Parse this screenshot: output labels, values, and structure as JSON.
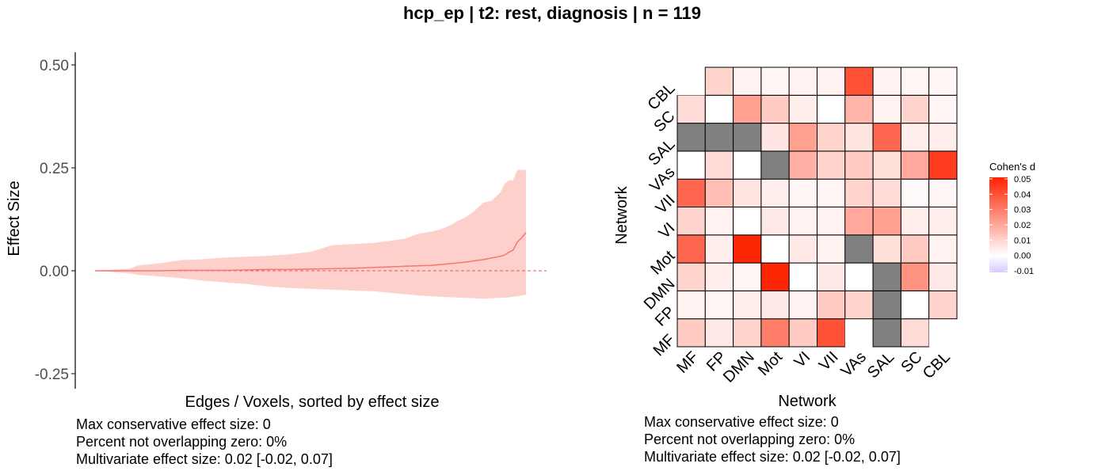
{
  "title": "hcp_ep | t2: rest, diagnosis | n = 119",
  "left_stats": [
    "Max conservative effect size: 0",
    "Percent not overlapping zero: 0%",
    "Multivariate effect size: 0.02 [-0.02, 0.07]"
  ],
  "right_stats": [
    "Max conservative effect size: 0",
    "Percent not overlapping zero: 0%",
    "Multivariate effect size: 0.02 [-0.02, 0.07]"
  ],
  "chart_data": [
    {
      "type": "area",
      "xlabel": "Edges / Voxels, sorted by effect size",
      "ylabel": "Effect Size",
      "ylim": [
        -0.28,
        0.54
      ],
      "yticks": [
        -0.25,
        0.0,
        0.25,
        0.5
      ],
      "ytick_labels": [
        "-0.25",
        "0.00",
        "0.25",
        "0.50"
      ],
      "reference_line": 0,
      "x": [
        0,
        3,
        5,
        8,
        10,
        15,
        20,
        25,
        30,
        35,
        40,
        45,
        50,
        55,
        60,
        65,
        70,
        72,
        75,
        78,
        80,
        82,
        84,
        86,
        88,
        90,
        92,
        94,
        95,
        96,
        97,
        98,
        99,
        100
      ],
      "series": [
        {
          "type": "line",
          "values": [
            0,
            0,
            0,
            0,
            0,
            0,
            0.001,
            0.001,
            0.001,
            0.002,
            0.003,
            0.003,
            0.004,
            0.005,
            0.006,
            0.008,
            0.01,
            0.011,
            0.012,
            0.013,
            0.015,
            0.017,
            0.019,
            0.021,
            0.024,
            0.027,
            0.031,
            0.035,
            0.038,
            0.045,
            0.05,
            0.07,
            0.08,
            0.093
          ],
          "color": "#f8766d"
        },
        {
          "type": "band",
          "upper": [
            0.001,
            0.002,
            0.003,
            0.005,
            0.013,
            0.018,
            0.026,
            0.028,
            0.032,
            0.034,
            0.036,
            0.04,
            0.046,
            0.062,
            0.065,
            0.068,
            0.075,
            0.078,
            0.09,
            0.095,
            0.1,
            0.108,
            0.12,
            0.13,
            0.145,
            0.165,
            0.17,
            0.19,
            0.21,
            0.22,
            0.22,
            0.245,
            0.245,
            0.245
          ],
          "lower": [
            -0.001,
            -0.002,
            -0.004,
            -0.006,
            -0.01,
            -0.014,
            -0.018,
            -0.024,
            -0.028,
            -0.032,
            -0.038,
            -0.042,
            -0.044,
            -0.046,
            -0.048,
            -0.05,
            -0.055,
            -0.057,
            -0.06,
            -0.062,
            -0.063,
            -0.064,
            -0.065,
            -0.066,
            -0.067,
            -0.068,
            -0.067,
            -0.066,
            -0.065,
            -0.065,
            -0.063,
            -0.062,
            -0.06,
            -0.058
          ],
          "color": "#fdd0cc"
        }
      ]
    },
    {
      "type": "heatmap",
      "xlabel": "Network",
      "ylabel": "Network",
      "x_categories": [
        "MF",
        "FP",
        "DMN",
        "Mot",
        "VI",
        "VII",
        "VAs",
        "SAL",
        "SC",
        "CBL"
      ],
      "y_categories": [
        "MF",
        "FP",
        "DMN",
        "Mot",
        "VI",
        "VII",
        "VAs",
        "SAL",
        "SC",
        "CBL"
      ],
      "values": [
        [
          0.012,
          0.005,
          0.01,
          0.03,
          0.012,
          0.04,
          null,
          "masked",
          0.008,
          null
        ],
        [
          0.003,
          0.002,
          0.004,
          0.005,
          0.003,
          0.012,
          0.01,
          "masked",
          0.0,
          0.01
        ],
        [
          0.01,
          0.004,
          0.002,
          0.05,
          0.0,
          0.005,
          0.0,
          "masked",
          0.025,
          0.005
        ],
        [
          0.035,
          0.004,
          0.05,
          0.0,
          0.005,
          0.003,
          "masked",
          0.007,
          0.012,
          0.003
        ],
        [
          0.01,
          0.003,
          0.0,
          0.005,
          0.003,
          0.003,
          0.02,
          0.022,
          0.004,
          0.004
        ],
        [
          0.035,
          0.015,
          0.006,
          0.004,
          0.002,
          0.002,
          0.01,
          0.008,
          0.001,
          0.002
        ],
        [
          0.0,
          0.008,
          0.0,
          "masked",
          0.018,
          0.01,
          0.012,
          0.007,
          0.02,
          0.045
        ],
        [
          "masked",
          "masked",
          "masked",
          0.006,
          0.022,
          0.01,
          0.006,
          0.035,
          0.004,
          0.004
        ],
        [
          0.008,
          0.0,
          0.022,
          0.012,
          0.004,
          0.0,
          0.017,
          0.003,
          0.01,
          0.002
        ],
        [
          null,
          0.01,
          0.003,
          0.002,
          0.003,
          0.003,
          0.04,
          0.003,
          0.002,
          0.002
        ]
      ],
      "legend": {
        "title": "Cohen's d",
        "ticks": [
          0.05,
          0.04,
          0.03,
          0.02,
          0.01,
          0.0,
          -0.01
        ],
        "tick_labels": [
          "0.05",
          "0.04",
          "0.03",
          "0.02",
          "0.01",
          "0.00",
          "-0.01"
        ],
        "range": [
          -0.011,
          0.051
        ],
        "low_color": "#d9c8ff",
        "mid_color": "#ffffff",
        "high_color": "#ff2200"
      },
      "masked_color": "#808080"
    }
  ]
}
